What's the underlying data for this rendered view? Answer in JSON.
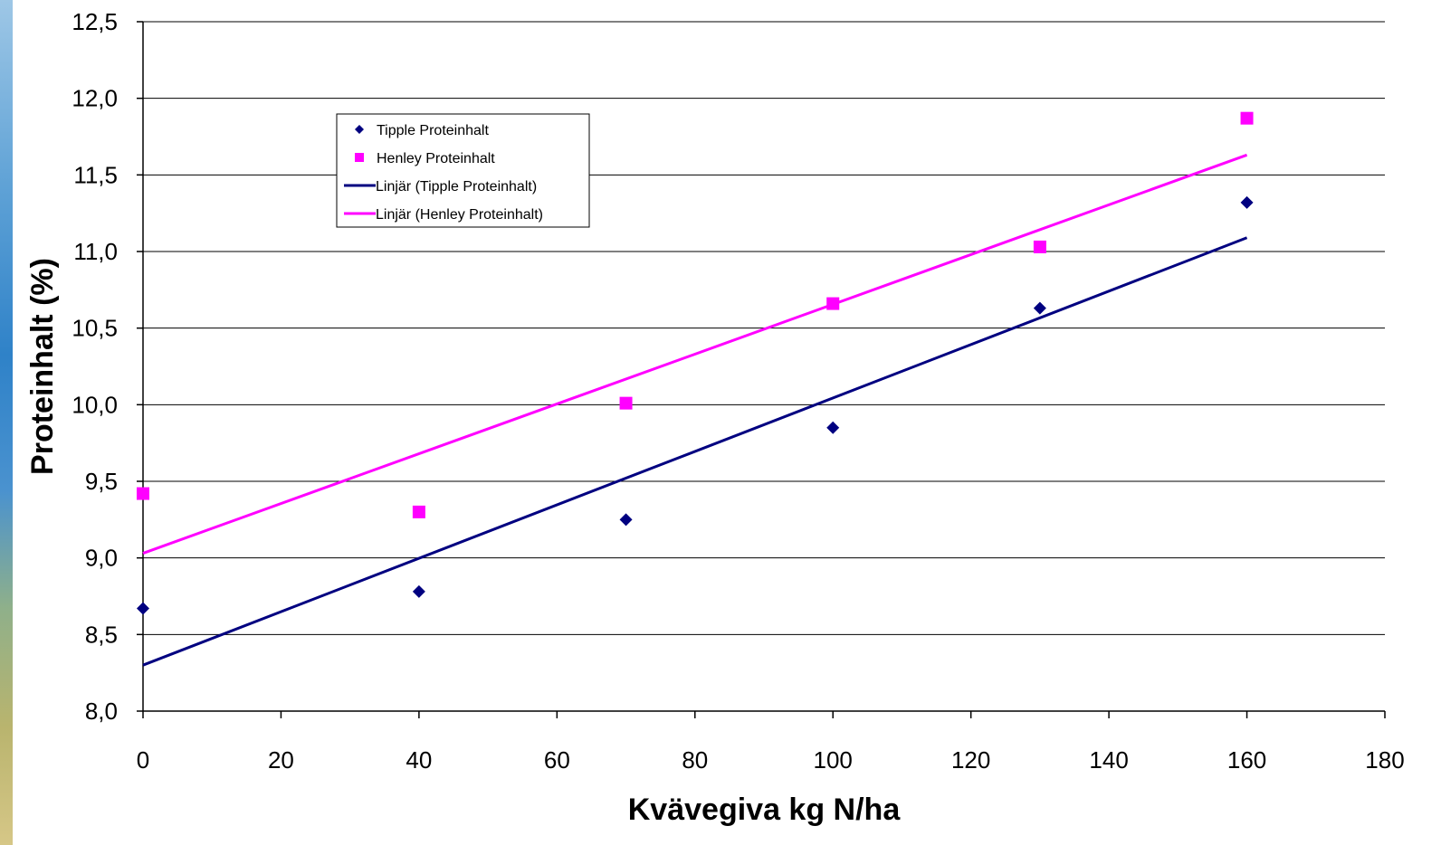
{
  "chart_data": {
    "type": "scatter",
    "title": "",
    "xlabel": "Kvävegiva kg N/ha",
    "ylabel": "Proteinhalt (%)",
    "xlim": [
      0,
      180
    ],
    "ylim": [
      8.0,
      12.5
    ],
    "x_ticks": [
      0,
      20,
      40,
      60,
      80,
      100,
      120,
      140,
      160,
      180
    ],
    "y_ticks": [
      8.0,
      8.5,
      9.0,
      9.5,
      10.0,
      10.5,
      11.0,
      11.5,
      12.0,
      12.5
    ],
    "x_tick_labels": [
      "0",
      "20",
      "40",
      "60",
      "80",
      "100",
      "120",
      "140",
      "160",
      "180"
    ],
    "y_tick_labels": [
      "8,0",
      "8,5",
      "9,0",
      "9,5",
      "10,0",
      "10,5",
      "11,0",
      "11,5",
      "12,0",
      "12,5"
    ],
    "grid": "horizontal",
    "legend_position": "top-left",
    "series": [
      {
        "name": "Tipple Proteinhalt",
        "marker": "diamond",
        "color": "#000080",
        "x": [
          0,
          40,
          70,
          100,
          130,
          160
        ],
        "y": [
          8.67,
          8.78,
          9.25,
          9.85,
          10.63,
          11.32
        ]
      },
      {
        "name": "Henley Proteinhalt",
        "marker": "square",
        "color": "#FF00FF",
        "x": [
          0,
          40,
          70,
          100,
          130,
          160
        ],
        "y": [
          9.42,
          9.3,
          10.01,
          10.66,
          11.03,
          11.87
        ]
      }
    ],
    "trendlines": [
      {
        "name": "Linjär (Tipple Proteinhalt)",
        "color": "#000080",
        "x": [
          0,
          160
        ],
        "y": [
          8.3,
          11.09
        ]
      },
      {
        "name": "Linjär (Henley Proteinhalt)",
        "color": "#FF00FF",
        "x": [
          0,
          160
        ],
        "y": [
          9.03,
          11.63
        ]
      }
    ]
  }
}
